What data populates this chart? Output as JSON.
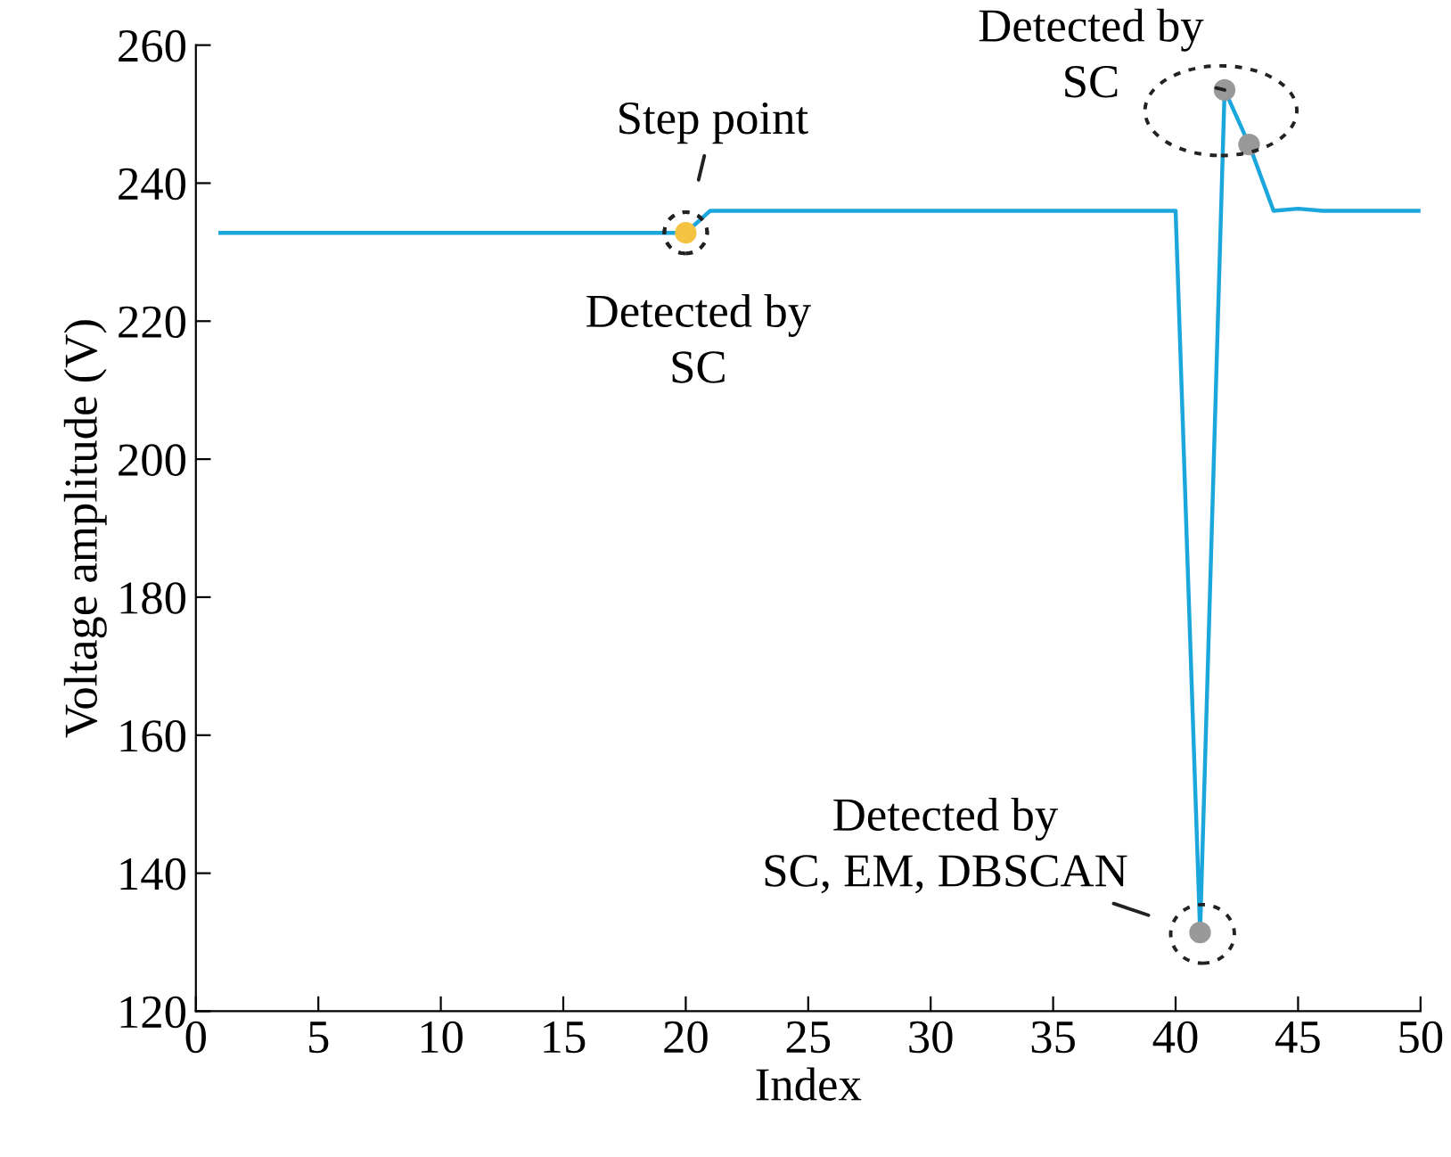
{
  "chart_data": {
    "type": "line",
    "xlabel": "Index",
    "ylabel": "Voltage amplitude (V)",
    "xlim": [
      0,
      50
    ],
    "ylim": [
      120,
      260
    ],
    "xticks": [
      0,
      5,
      10,
      15,
      20,
      25,
      30,
      35,
      40,
      45,
      50
    ],
    "yticks": [
      120,
      140,
      160,
      180,
      200,
      220,
      240,
      260
    ],
    "grid": false,
    "legend": false,
    "series": [
      {
        "color": "#1ba6dc",
        "x": [
          1,
          2,
          3,
          4,
          5,
          6,
          7,
          8,
          9,
          10,
          11,
          12,
          13,
          14,
          15,
          16,
          17,
          18,
          19,
          20,
          21,
          22,
          23,
          24,
          25,
          26,
          27,
          28,
          29,
          30,
          31,
          32,
          33,
          34,
          35,
          36,
          37,
          38,
          39,
          40,
          41,
          42,
          43,
          44,
          45,
          46,
          47,
          48,
          49,
          50
        ],
        "values": [
          232.8,
          232.8,
          232.8,
          232.8,
          232.8,
          232.8,
          232.8,
          232.8,
          232.8,
          232.8,
          232.8,
          232.8,
          232.8,
          232.8,
          232.8,
          232.8,
          232.8,
          232.8,
          232.8,
          232.8,
          236,
          236,
          236,
          236,
          236,
          236,
          236,
          236,
          236,
          236,
          236,
          236,
          236,
          236,
          236,
          236,
          236,
          236,
          236,
          236,
          131.4,
          253.5,
          245.6,
          236,
          236.3,
          236,
          236,
          236,
          236,
          236
        ],
        "marker": "none"
      },
      {
        "type": "scatter",
        "color": "#f5c342",
        "x": [
          20
        ],
        "values": [
          232.8
        ],
        "marker": "circle"
      },
      {
        "type": "scatter",
        "color": "#999999",
        "x": [
          41,
          42,
          43
        ],
        "values": [
          131.4,
          253.5,
          245.6
        ],
        "marker": "circle"
      }
    ],
    "annotations": [
      {
        "text": "Step point",
        "x": 20,
        "y": 232.8
      },
      {
        "text": "Detected by\nSC",
        "x": 20,
        "y": 232.8
      },
      {
        "text": "Detected by\nSC",
        "x": 42,
        "y": 253.5
      },
      {
        "text": "Detected by\nSC, EM, DBSCAN",
        "x": 41,
        "y": 131.4
      }
    ]
  }
}
